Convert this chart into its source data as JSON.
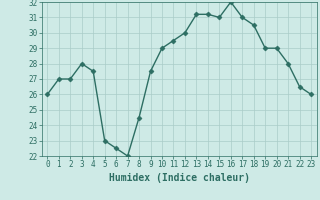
{
  "xlabel": "Humidex (Indice chaleur)",
  "x": [
    0,
    1,
    2,
    3,
    4,
    5,
    6,
    7,
    8,
    9,
    10,
    11,
    12,
    13,
    14,
    15,
    16,
    17,
    18,
    19,
    20,
    21,
    22,
    23
  ],
  "y": [
    26,
    27,
    27,
    28,
    27.5,
    23,
    22.5,
    22,
    24.5,
    27.5,
    29,
    29.5,
    30,
    31.2,
    31.2,
    31,
    32,
    31,
    30.5,
    29,
    29,
    28,
    26.5,
    26
  ],
  "line_color": "#2d6e63",
  "marker": "D",
  "marker_size": 2.5,
  "bg_color": "#ceeae6",
  "grid_color": "#aaccc8",
  "ylim": [
    22,
    32
  ],
  "xlim": [
    -0.5,
    23.5
  ],
  "yticks": [
    22,
    23,
    24,
    25,
    26,
    27,
    28,
    29,
    30,
    31,
    32
  ],
  "xticks": [
    0,
    1,
    2,
    3,
    4,
    5,
    6,
    7,
    8,
    9,
    10,
    11,
    12,
    13,
    14,
    15,
    16,
    17,
    18,
    19,
    20,
    21,
    22,
    23
  ],
  "tick_label_fontsize": 5.5,
  "xlabel_fontsize": 7.0,
  "linewidth": 1.0
}
